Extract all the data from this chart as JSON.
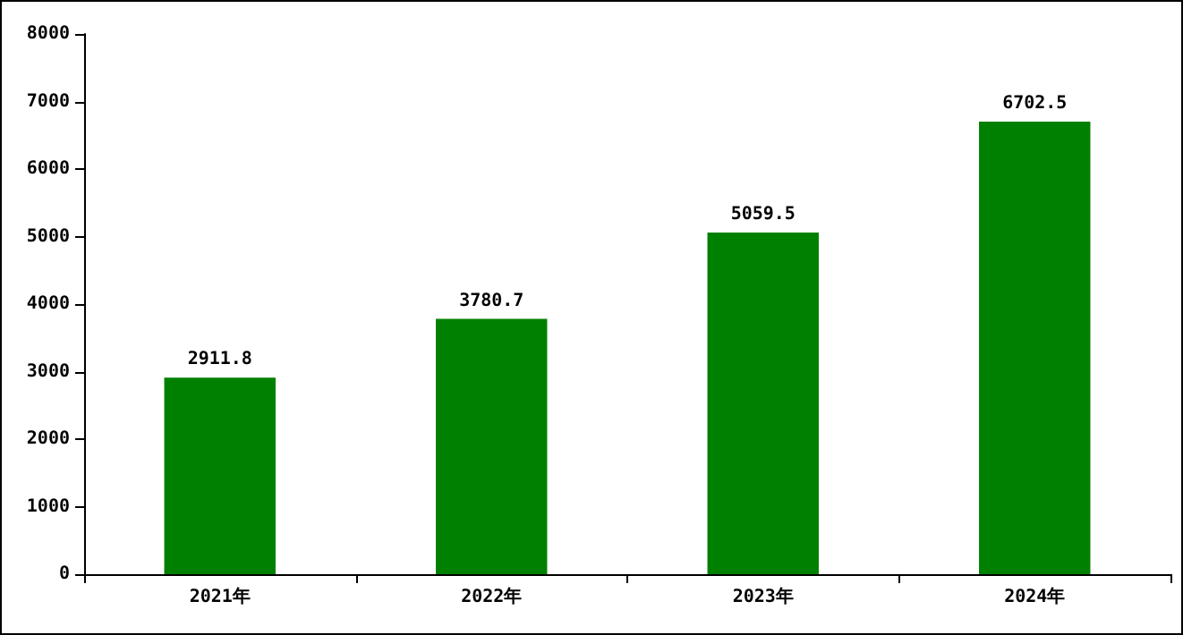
{
  "chart_data": {
    "type": "bar",
    "categories": [
      "2021年",
      "2022年",
      "2023年",
      "2024年"
    ],
    "values": [
      2911.8,
      3780.7,
      5059.5,
      6702.5
    ],
    "color": "#008000",
    "ylim": [
      0,
      8000
    ],
    "yticks": [
      0,
      1000,
      2000,
      3000,
      4000,
      5000,
      6000,
      7000,
      8000
    ],
    "grid": false,
    "data_labels": true
  }
}
